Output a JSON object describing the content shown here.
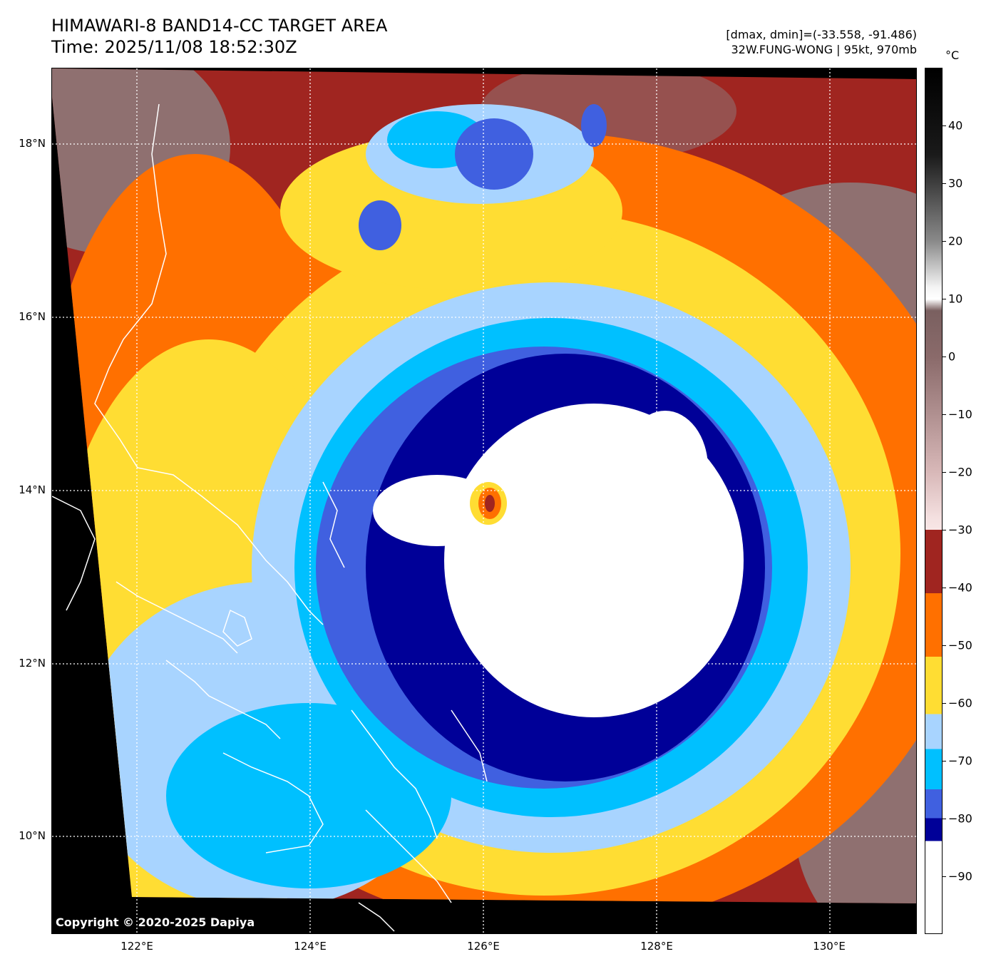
{
  "header": {
    "title_line1": "HIMAWARI-8 BAND14-CC TARGET AREA",
    "title_line2": "Time: 2025/11/08 18:52:30Z",
    "info_line1": "[dmax, dmin]=(-33.558, -91.486)",
    "info_line2": "32W.FUNG-WONG | 95kt, 970mb"
  },
  "map": {
    "lat_labels": [
      "18°N",
      "16°N",
      "14°N",
      "12°N",
      "10°N"
    ],
    "lon_labels": [
      "122°E",
      "124°E",
      "126°E",
      "128°E",
      "130°E"
    ],
    "copyright": "Copyright © 2020-2025 Dapiya",
    "colors": {
      "background": "#000000",
      "warm": "#8f7070",
      "maroon": "#a02520",
      "orange": "#ff7000",
      "yellow": "#ffdd33",
      "lightblue": "#a8d4ff",
      "cyan": "#00c0ff",
      "blue": "#4060e0",
      "darkblue": "#000098",
      "white": "#ffffff",
      "coast": "#ffffff",
      "grid": "#ffffff"
    }
  },
  "colorbar": {
    "unit": "°C",
    "tick_labels": [
      "40",
      "30",
      "20",
      "10",
      "0",
      "−10",
      "−20",
      "−30",
      "−40",
      "−50",
      "−60",
      "−70",
      "−80",
      "−90"
    ],
    "tick_values": [
      40,
      30,
      20,
      10,
      0,
      -10,
      -20,
      -30,
      -40,
      -50,
      -60,
      -70,
      -80,
      -90
    ],
    "range": [
      -100,
      50
    ],
    "segments": [
      {
        "from": -100,
        "to": -84,
        "color": "#ffffff"
      },
      {
        "from": -84,
        "to": -80,
        "color": "#000098"
      },
      {
        "from": -80,
        "to": -75,
        "color": "#4060e0"
      },
      {
        "from": -75,
        "to": -68,
        "color": "#00c0ff"
      },
      {
        "from": -68,
        "to": -62,
        "color": "#a8d4ff"
      },
      {
        "from": -62,
        "to": -52,
        "color": "#ffdd33"
      },
      {
        "from": -52,
        "to": -41,
        "color": "#ff7000"
      },
      {
        "from": -41,
        "to": -30,
        "color": "#a02520"
      }
    ]
  }
}
